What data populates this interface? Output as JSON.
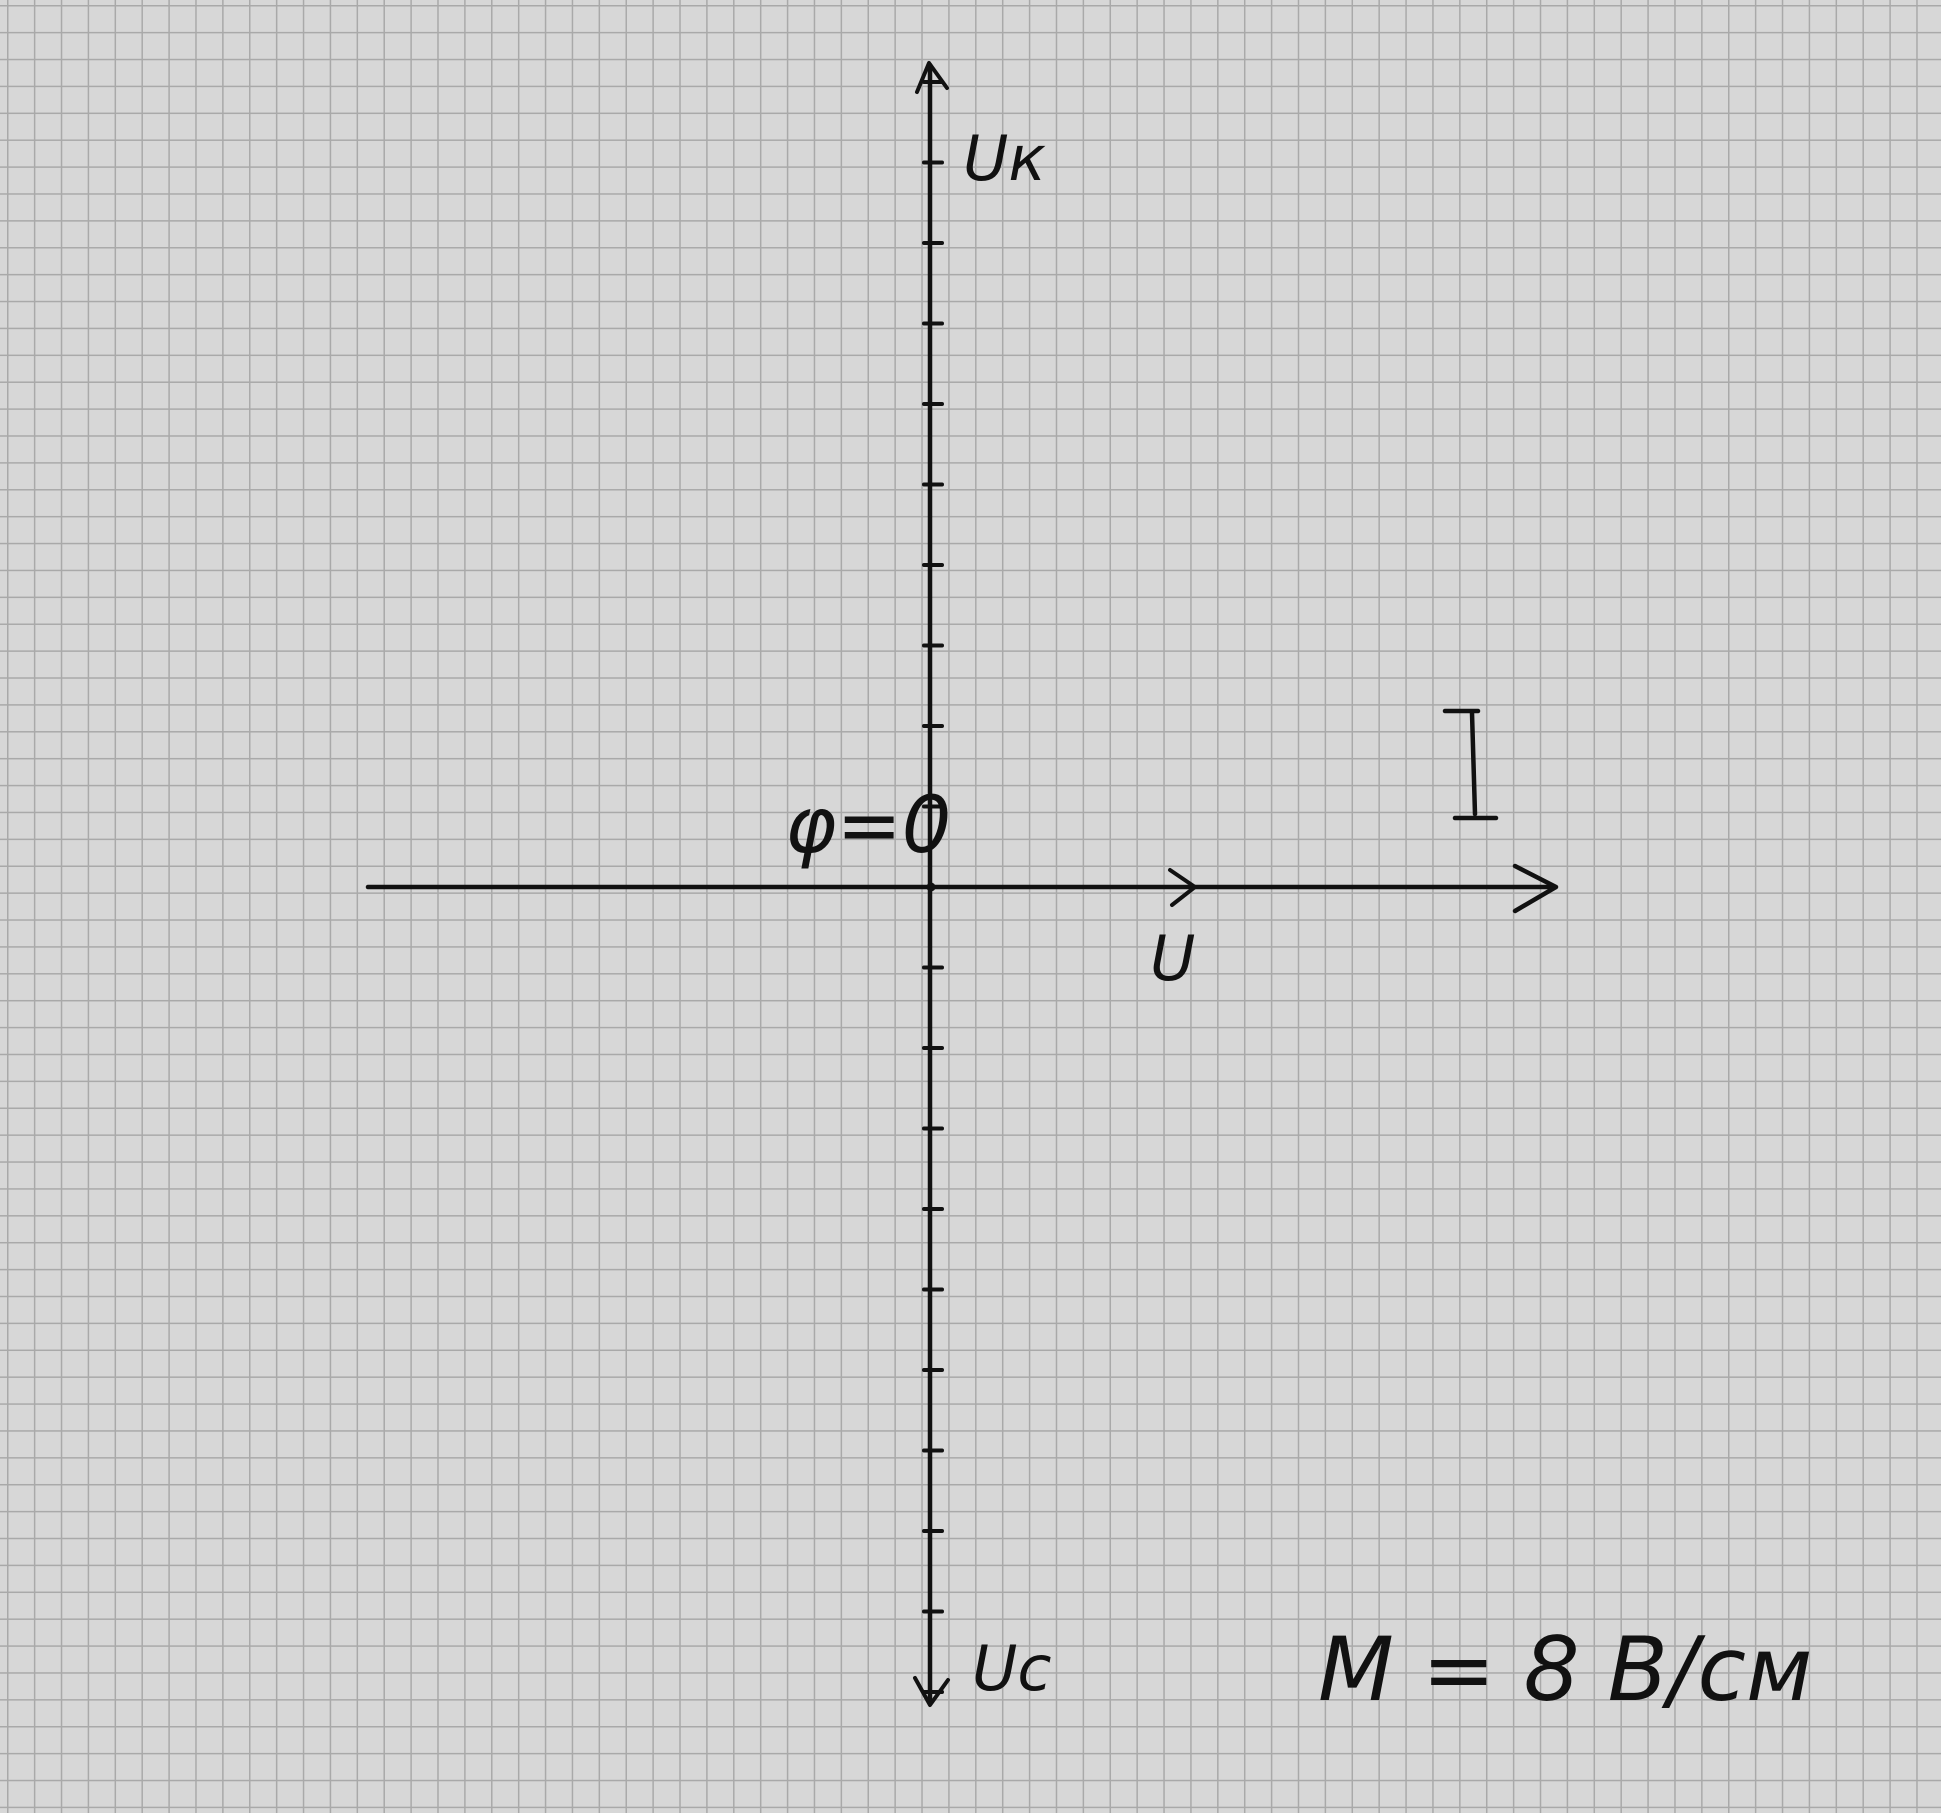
{
  "labels": {
    "u_k": "Uк",
    "u_c": "Uc",
    "u": "U",
    "current": "I",
    "phi": "φ=0",
    "scale": "M = 8 В/см"
  },
  "axis_ticks": {
    "above_origin": 10,
    "below_origin": 10
  }
}
